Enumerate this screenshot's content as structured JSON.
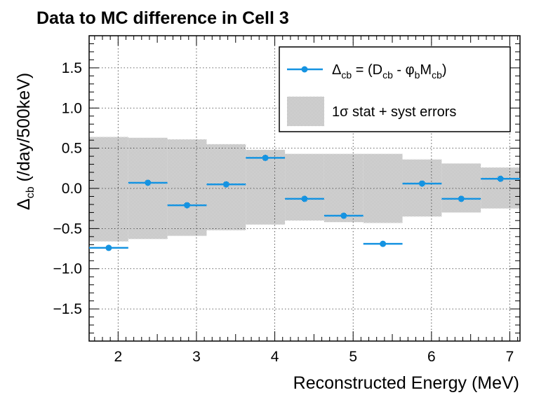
{
  "chart_data": {
    "type": "scatter",
    "title": "Data to MC difference in Cell 3",
    "xlabel": "Reconstructed Energy (MeV)",
    "ylabel_main": "Δ",
    "ylabel_sub": "cb",
    "ylabel_rest": " (/day/500keV)",
    "xlim": [
      1.63,
      7.13
    ],
    "ylim": [
      -1.9,
      1.9
    ],
    "x_ticks": [
      2,
      3,
      4,
      5,
      6,
      7
    ],
    "y_ticks": [
      -1.5,
      -1.0,
      -0.5,
      0.0,
      0.5,
      1.0,
      1.5
    ],
    "y_tick_labels": [
      "−1.5",
      "−1.0",
      "−0.5",
      "0.0",
      "0.5",
      "1.0",
      "1.5"
    ],
    "grid": true,
    "legend_position": "top-right",
    "series": [
      {
        "legend_label": "Δcb = (Dcb - φbMcb)",
        "color": "#1593e1",
        "x": [
          1.88,
          2.38,
          2.88,
          3.38,
          3.88,
          4.38,
          4.88,
          5.38,
          5.88,
          6.38,
          6.88
        ],
        "x_halfwidth": 0.25,
        "y": [
          -0.74,
          0.07,
          -0.21,
          0.05,
          0.38,
          -0.13,
          -0.34,
          -0.69,
          0.06,
          -0.13,
          0.12
        ]
      }
    ],
    "band": {
      "legend_label": "1σ stat + syst errors",
      "color": "#c8c8c8",
      "bins_lo": [
        1.63,
        2.13,
        2.63,
        3.13,
        3.63,
        4.13,
        4.63,
        5.13,
        5.63,
        6.13,
        6.63
      ],
      "bins_hi": [
        2.13,
        2.63,
        3.13,
        3.63,
        4.13,
        4.63,
        5.13,
        5.63,
        6.13,
        6.63,
        7.13
      ],
      "lower": [
        -0.66,
        -0.63,
        -0.59,
        -0.52,
        -0.45,
        -0.4,
        -0.42,
        -0.43,
        -0.35,
        -0.3,
        -0.25
      ],
      "upper": [
        0.64,
        0.63,
        0.61,
        0.55,
        0.48,
        0.43,
        0.43,
        0.43,
        0.36,
        0.31,
        0.26
      ]
    },
    "legend": {
      "l1_main": "Δ",
      "l1_sub1": "cb",
      "l1_mid": " = (D",
      "l1_sub2": "cb",
      "l1_mid2": " - φ",
      "l1_sub3": "b",
      "l1_mid3": "M",
      "l1_sub4": "cb",
      "l1_end": ")",
      "l2": "1σ stat + syst errors"
    }
  }
}
